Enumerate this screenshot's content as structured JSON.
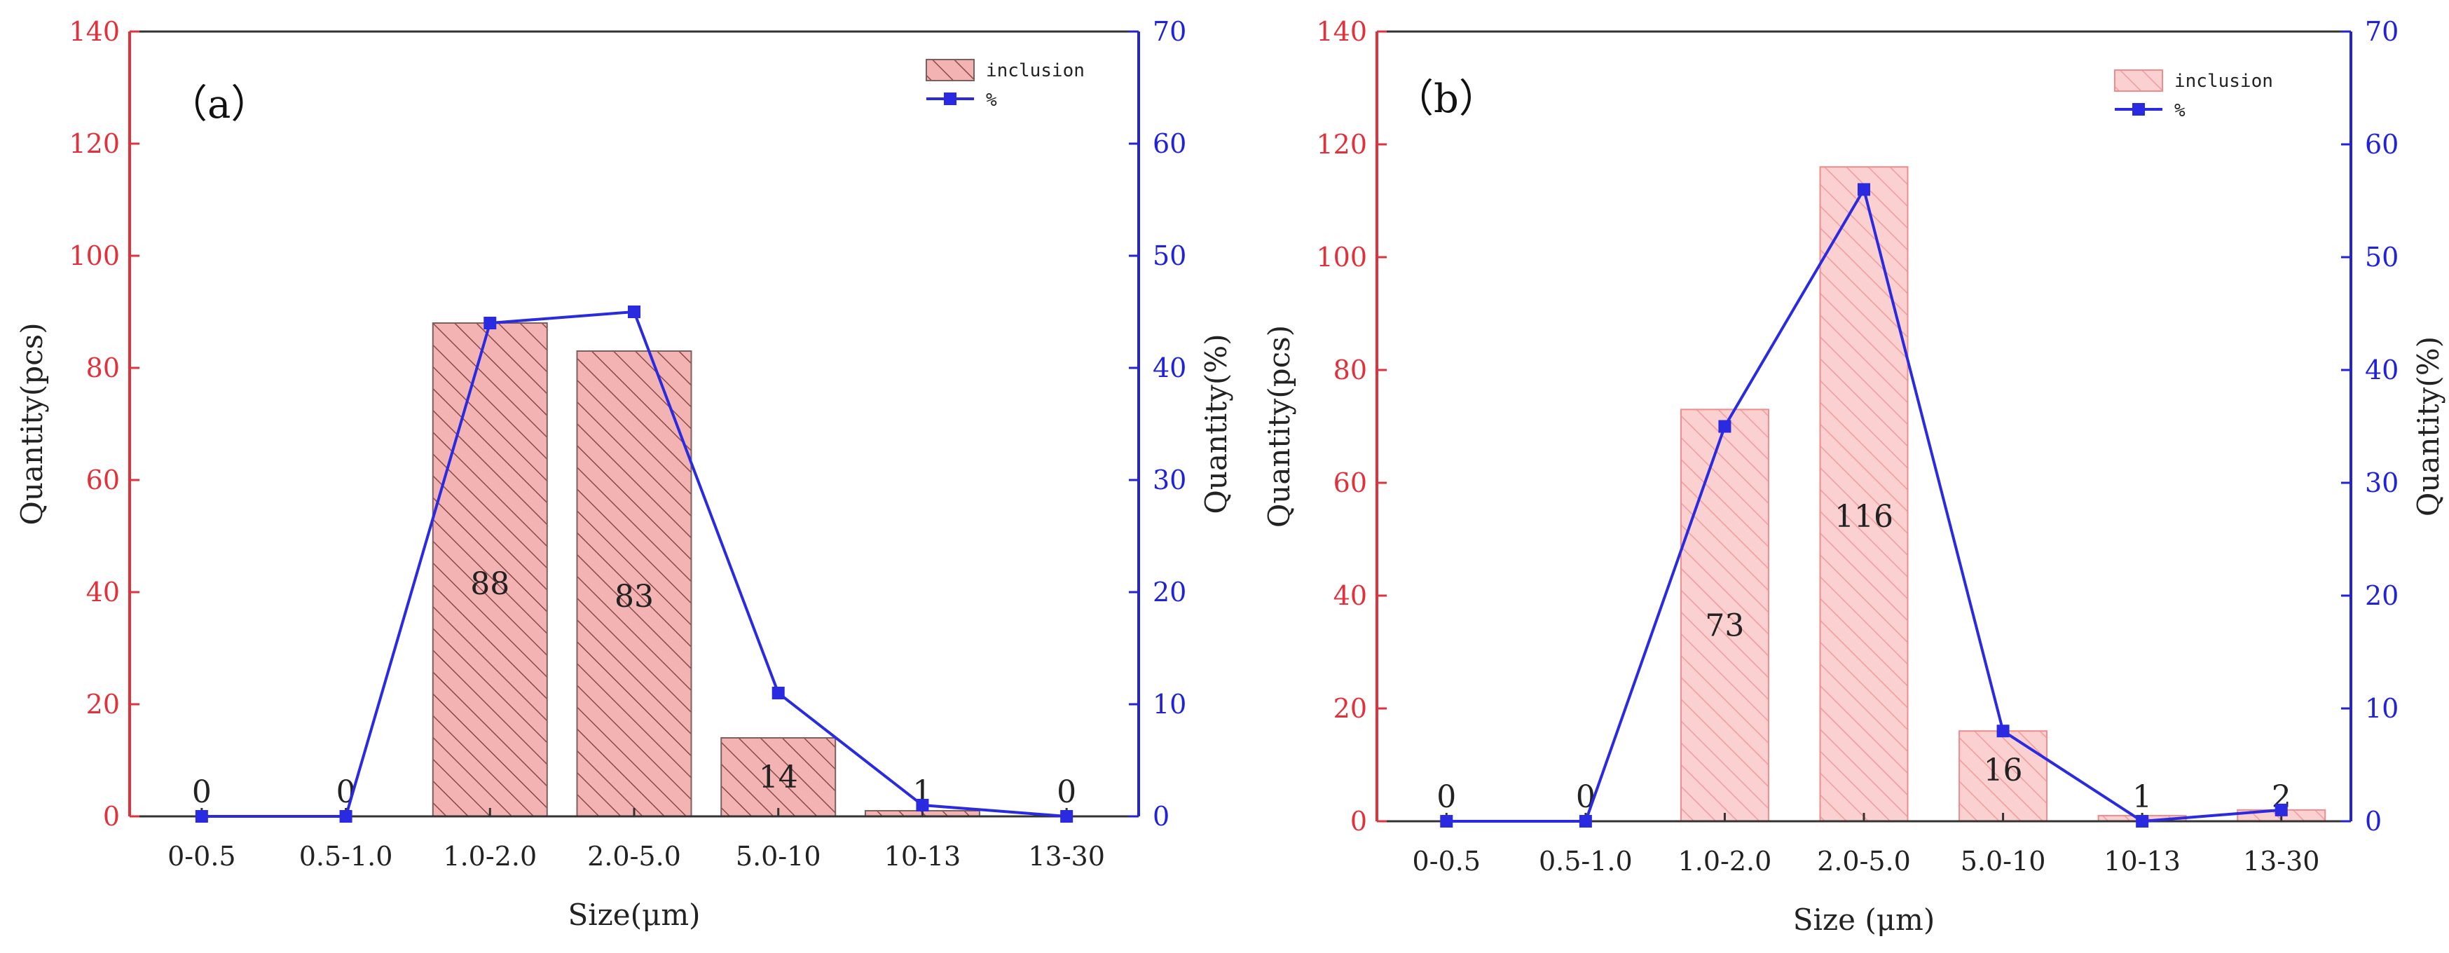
{
  "chart_data": [
    {
      "type": "bar",
      "panel_label": "（a）",
      "categories": [
        "0-0.5",
        "0.5-1.0",
        "1.0-2.0",
        "2.0-5.0",
        "5.0-10",
        "10-13",
        "13-30"
      ],
      "series": [
        {
          "name": "inclusion",
          "axis": "left",
          "style": "hatched-bar",
          "values": [
            0,
            0,
            88,
            83,
            14,
            1,
            0
          ]
        },
        {
          "name": "%",
          "axis": "right",
          "style": "line-square",
          "values": [
            0,
            0,
            44,
            45,
            11,
            1,
            0
          ]
        }
      ],
      "data_labels": [
        "0",
        "0",
        "88",
        "83",
        "14",
        "1",
        "0"
      ],
      "xlabel": "Size(μm)",
      "ylabel_left": "Quantity(pcs)",
      "ylabel_right": "Quantity(%)",
      "ylim_left": [
        0,
        140
      ],
      "ylim_right": [
        0,
        70
      ],
      "yticks_left": [
        "0",
        "20",
        "40",
        "60",
        "80",
        "100",
        "120",
        "140"
      ],
      "yticks_right": [
        "0",
        "10",
        "20",
        "30",
        "40",
        "50",
        "60",
        "70"
      ],
      "legend": [
        "inclusion",
        "%"
      ],
      "legend_position": "top-right",
      "colors": {
        "bar_fill": "#f4b3b3",
        "bar_stroke": "#7a6060",
        "hatch": "#8a4a4a",
        "line": "#2a2ae0",
        "left_axis": "#e0323c",
        "right_axis": "#2222d6"
      }
    },
    {
      "type": "bar",
      "panel_label": "（b）",
      "categories": [
        "0-0.5",
        "0.5-1.0",
        "1.0-2.0",
        "2.0-5.0",
        "5.0-10",
        "10-13",
        "13-30"
      ],
      "series": [
        {
          "name": "inclusion",
          "axis": "left",
          "style": "light-hatched-bar",
          "values": [
            0,
            0,
            73,
            116,
            16,
            1,
            2
          ]
        },
        {
          "name": "%",
          "axis": "right",
          "style": "line-square",
          "values": [
            0,
            0,
            35,
            56,
            8,
            0,
            1
          ]
        }
      ],
      "data_labels": [
        "0",
        "0",
        "73",
        "116",
        "16",
        "1",
        "2"
      ],
      "xlabel": "Size (μm)",
      "ylabel_left": "Quantity(pcs)",
      "ylabel_right": "Quantity(%)",
      "ylim_left": [
        0,
        140
      ],
      "ylim_right": [
        0,
        70
      ],
      "yticks_left": [
        "0",
        "20",
        "40",
        "60",
        "80",
        "100",
        "120",
        "140"
      ],
      "yticks_right": [
        "0",
        "10",
        "20",
        "30",
        "40",
        "50",
        "60",
        "70"
      ],
      "legend": [
        "inclusion",
        "%"
      ],
      "legend_position": "top-right",
      "colors": {
        "bar_fill": "#fbd0d0",
        "bar_stroke": "#f08c8c",
        "hatch": "#f29b9b",
        "line": "#2a2ae0",
        "left_axis": "#e0323c",
        "right_axis": "#2222d6"
      }
    }
  ]
}
